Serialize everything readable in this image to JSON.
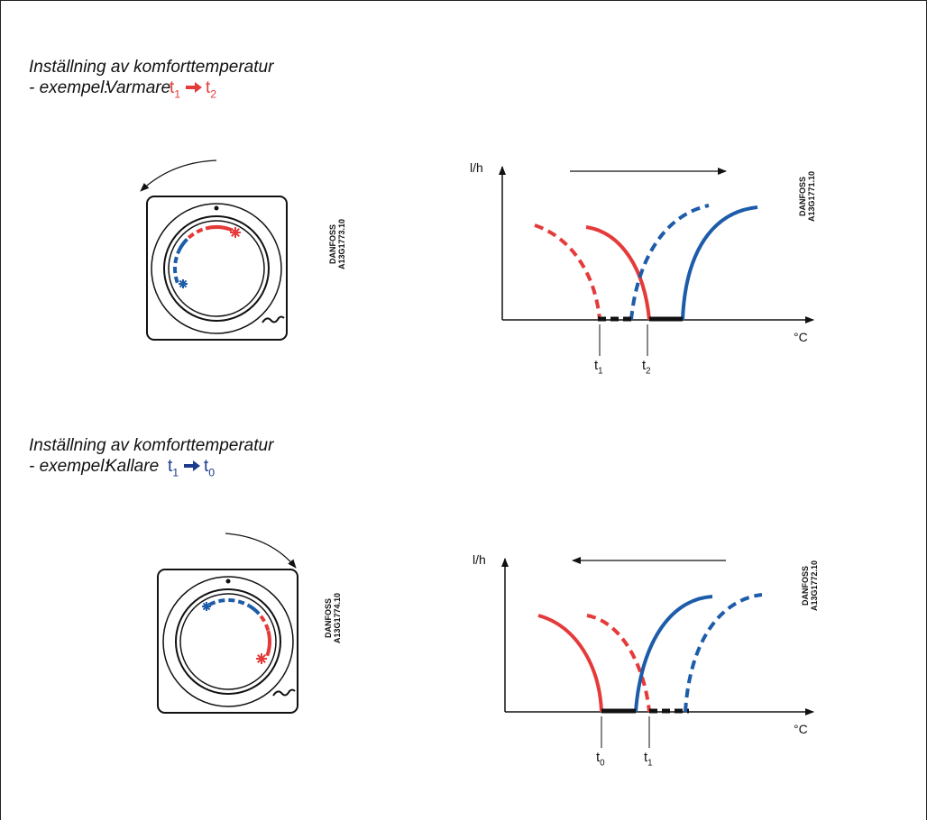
{
  "sections": [
    {
      "title": "Inställning av komforttemperatur",
      "example_prefix": "- exempel:",
      "example_word": "Varmare",
      "from": {
        "base": "t",
        "sub": "1"
      },
      "to": {
        "base": "t",
        "sub": "2"
      },
      "dial_code": [
        "DANFOSS",
        "A13G1773.10"
      ],
      "graph": {
        "y_label": "l/h",
        "x_label": "°C",
        "markers": [
          {
            "base": "t",
            "sub": "1"
          },
          {
            "base": "t",
            "sub": "2"
          }
        ],
        "code": [
          "DANFOSS",
          "A13G1771.10"
        ]
      }
    },
    {
      "title": "Inställning av komforttemperatur",
      "example_prefix": "- exempel:",
      "example_word": "Kallare",
      "from": {
        "base": "t",
        "sub": "1"
      },
      "to": {
        "base": "t",
        "sub": "0"
      },
      "dial_code": [
        "DANFOSS",
        "A13G1774.10"
      ],
      "graph": {
        "y_label": "l/h",
        "x_label": "°C",
        "markers": [
          {
            "base": "t",
            "sub": "0"
          },
          {
            "base": "t",
            "sub": "1"
          }
        ],
        "code": [
          "DANFOSS",
          "A13G1772.10"
        ]
      }
    }
  ]
}
